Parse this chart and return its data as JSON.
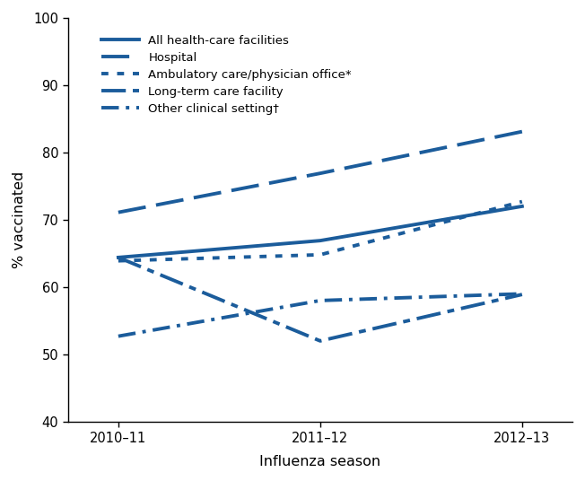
{
  "seasons": [
    "2010–11",
    "2011–12",
    "2012–13"
  ],
  "x_positions": [
    0,
    1,
    2
  ],
  "series": [
    {
      "label": "All health-care facilities",
      "values": [
        64.4,
        66.9,
        72.0
      ],
      "linestyle": "solid",
      "linewidth": 2.8,
      "color": "#1b5c9b",
      "dash": null
    },
    {
      "label": "Hospital",
      "values": [
        71.1,
        76.9,
        83.1
      ],
      "linestyle": "dashed",
      "linewidth": 2.8,
      "color": "#1b5c9b",
      "dash": [
        8,
        3
      ]
    },
    {
      "label": "Ambulatory care/physician office*",
      "values": [
        63.9,
        64.8,
        72.7
      ],
      "linestyle": "dotted",
      "linewidth": 2.8,
      "color": "#1b5c9b",
      "dash": [
        2,
        3
      ]
    },
    {
      "label": "Long-term care facility",
      "values": [
        64.4,
        52.0,
        58.9
      ],
      "linestyle": "dashdot_long",
      "linewidth": 2.8,
      "color": "#1b5c9b",
      "dash": [
        7,
        3,
        2,
        3
      ]
    },
    {
      "label": "Other clinical setting†",
      "values": [
        52.7,
        58.0,
        59.0
      ],
      "linestyle": "dashdot_short",
      "linewidth": 2.8,
      "color": "#1b5c9b",
      "dash": [
        4,
        2,
        1,
        2
      ]
    }
  ],
  "ylim": [
    40,
    100
  ],
  "yticks": [
    40,
    50,
    60,
    70,
    80,
    90,
    100
  ],
  "ylabel": "% vaccinated",
  "xlabel": "Influenza season",
  "background_color": "#ffffff",
  "figsize": [
    6.52,
    5.36
  ],
  "dpi": 100
}
